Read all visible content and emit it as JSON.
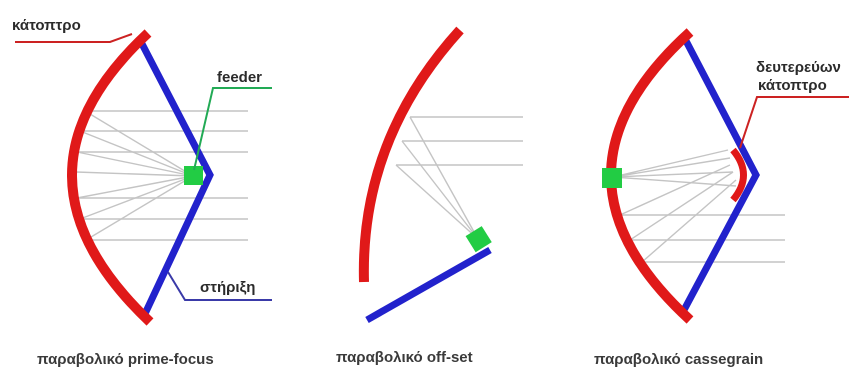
{
  "labels": {
    "mirror": "κάτοπτρο",
    "feeder": "feeder",
    "support": "στήριξη",
    "secondary_line1": "δευτερεύων",
    "secondary_line2": "κάτοπτρο"
  },
  "captions": {
    "prime_focus": "παραβολικό prime-focus",
    "offset": "παραβολικό off-set",
    "cassegrain": "παραβολικό cassegrain"
  },
  "colors": {
    "reflector": "#e01919",
    "support": "#2222cc",
    "feeder": "#22cc44",
    "rays": "#c4c4c4",
    "leader_red": "#cc2222",
    "leader_green": "#22aa55",
    "leader_blue": "#3a3aa8"
  }
}
